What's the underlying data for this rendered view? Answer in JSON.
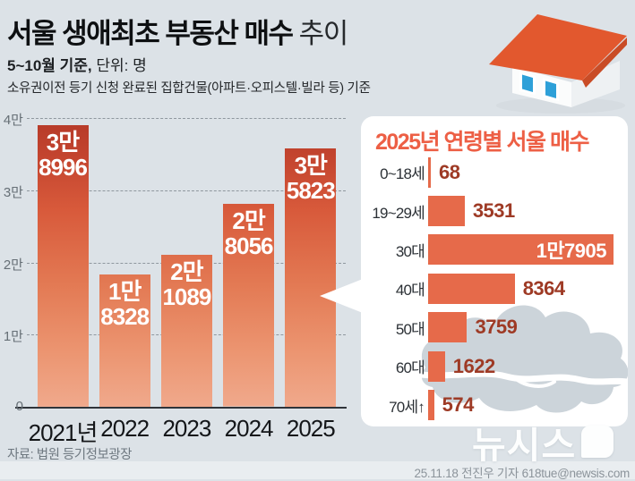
{
  "header": {
    "title_strong": "서울 생애최초 부동산 매수",
    "title_light": " 추이",
    "subtitle_strong": "5~10월 기준,",
    "subtitle_rest": " 단위: 명",
    "note": "소유권이전 등기 신청 완료된 집합건물(아파트·오피스텔·빌라 등) 기준"
  },
  "colors": {
    "background": "#dce2e7",
    "bar_gradient_top": "#b53928",
    "bar_gradient_bottom": "#f0a98c",
    "age_bar": "#e66a4a",
    "age_value_text": "#9e3a25",
    "panel_title": "#ed5f45",
    "panel_background": "#ffffff",
    "map_silhouette": "#ccd4da",
    "house_roof": "#e2582e",
    "house_window": "#2ea0d8"
  },
  "chart_data": [
    {
      "type": "bar",
      "title": "서울 생애최초 부동산 매수 추이",
      "subtitle": "5~10월 기준",
      "unit": "명",
      "categories": [
        "2021년",
        "2022",
        "2023",
        "2024",
        "2025"
      ],
      "values": [
        38996,
        18328,
        21089,
        28056,
        35823
      ],
      "bar_labels": [
        [
          "3만",
          "8996"
        ],
        [
          "1만",
          "8328"
        ],
        [
          "2만",
          "1089"
        ],
        [
          "2만",
          "8056"
        ],
        [
          "3만",
          "5823"
        ]
      ],
      "ylim": [
        0,
        40000
      ],
      "yticks": [
        {
          "label": "4만",
          "value": 40000
        },
        {
          "label": "3만",
          "value": 30000
        },
        {
          "label": "2만",
          "value": 20000
        },
        {
          "label": "1만",
          "value": 10000
        },
        {
          "label": "0",
          "value": 0
        }
      ],
      "grid": true,
      "legend": false
    },
    {
      "type": "bar-horizontal",
      "title": "2025년 연령별 서울 매수",
      "categories": [
        "0~18세",
        "19~29세",
        "30대",
        "40대",
        "50대",
        "60대",
        "70세↑"
      ],
      "values": [
        68,
        3531,
        17905,
        8364,
        3759,
        1622,
        574
      ],
      "value_labels": [
        "68",
        "3531",
        "1만7905",
        "8364",
        "3759",
        "1622",
        "574"
      ],
      "value_inside_index": 2,
      "xmax": 17905,
      "grid": false,
      "legend": false
    }
  ],
  "footer": {
    "source": "자료: 법원 등기정보광장",
    "credit": "25.11.18 전진우 기자 618tue@newsis.com",
    "logo": "뉴시스"
  }
}
